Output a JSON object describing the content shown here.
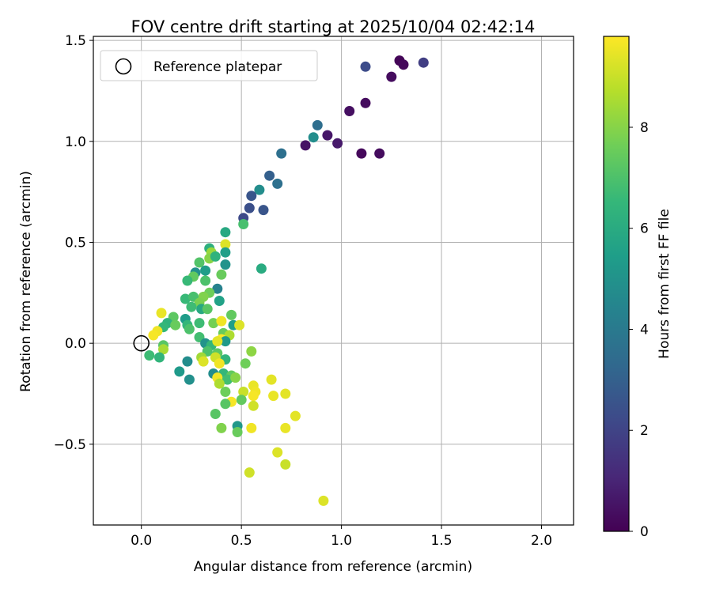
{
  "chart_data": {
    "type": "scatter",
    "title": "FOV centre drift starting at 2025/10/04 02:42:14",
    "xlabel": "Angular distance from reference (arcmin)",
    "ylabel": "Rotation from reference (arcmin)",
    "xlim": [
      -0.24,
      2.16
    ],
    "ylim": [
      -0.9,
      1.52
    ],
    "xticks": [
      0.0,
      0.5,
      1.0,
      1.5,
      2.0
    ],
    "xtick_labels": [
      "0.0",
      "0.5",
      "1.0",
      "1.5",
      "2.0"
    ],
    "yticks": [
      -0.5,
      0.0,
      0.5,
      1.0,
      1.5
    ],
    "ytick_labels": [
      "−0.5",
      "0.0",
      "0.5",
      "1.0",
      "1.5"
    ],
    "grid": true,
    "legend": {
      "label": "Reference platepar",
      "position": "top-left"
    },
    "reference_point": {
      "x": 0.0,
      "y": 0.0
    },
    "colorbar": {
      "label": "Hours from first FF file",
      "range": [
        0,
        9.8
      ],
      "ticks": [
        0,
        2,
        4,
        6,
        8
      ],
      "tick_labels": [
        "0",
        "2",
        "4",
        "6",
        "8"
      ],
      "colormap": "viridis",
      "colors": [
        "#440154",
        "#482878",
        "#3e4989",
        "#31688e",
        "#26828e",
        "#1f9e89",
        "#35b779",
        "#6ece58",
        "#b5de2b",
        "#fde725"
      ]
    },
    "series": [
      {
        "name": "FOV centre",
        "points": [
          {
            "x": 1.29,
            "y": 1.4,
            "h": 0.1
          },
          {
            "x": 1.31,
            "y": 1.38,
            "h": 0.2
          },
          {
            "x": 1.41,
            "y": 1.39,
            "h": 1.8
          },
          {
            "x": 1.12,
            "y": 1.37,
            "h": 2.3
          },
          {
            "x": 1.25,
            "y": 1.32,
            "h": 0.3
          },
          {
            "x": 1.12,
            "y": 1.19,
            "h": 0.3
          },
          {
            "x": 1.04,
            "y": 1.15,
            "h": 0.4
          },
          {
            "x": 0.88,
            "y": 1.08,
            "h": 3.5
          },
          {
            "x": 0.93,
            "y": 1.03,
            "h": 0.6
          },
          {
            "x": 0.86,
            "y": 1.02,
            "h": 4.8
          },
          {
            "x": 0.98,
            "y": 0.99,
            "h": 0.7
          },
          {
            "x": 0.82,
            "y": 0.98,
            "h": 0.5
          },
          {
            "x": 1.1,
            "y": 0.94,
            "h": 0.2
          },
          {
            "x": 1.19,
            "y": 0.94,
            "h": 0.3
          },
          {
            "x": 0.7,
            "y": 0.94,
            "h": 3.6
          },
          {
            "x": 0.64,
            "y": 0.83,
            "h": 3.0
          },
          {
            "x": 0.68,
            "y": 0.79,
            "h": 3.6
          },
          {
            "x": 0.59,
            "y": 0.76,
            "h": 4.8
          },
          {
            "x": 0.55,
            "y": 0.73,
            "h": 2.6
          },
          {
            "x": 0.54,
            "y": 0.67,
            "h": 2.4
          },
          {
            "x": 0.61,
            "y": 0.66,
            "h": 2.6
          },
          {
            "x": 0.51,
            "y": 0.62,
            "h": 2.2
          },
          {
            "x": 0.51,
            "y": 0.59,
            "h": 6.9
          },
          {
            "x": 0.42,
            "y": 0.55,
            "h": 5.9
          },
          {
            "x": 0.42,
            "y": 0.49,
            "h": 9.3
          },
          {
            "x": 0.34,
            "y": 0.47,
            "h": 6.2
          },
          {
            "x": 0.35,
            "y": 0.45,
            "h": 8.3
          },
          {
            "x": 0.42,
            "y": 0.45,
            "h": 5.5
          },
          {
            "x": 0.34,
            "y": 0.42,
            "h": 8.0
          },
          {
            "x": 0.37,
            "y": 0.43,
            "h": 6.3
          },
          {
            "x": 0.29,
            "y": 0.4,
            "h": 7.1
          },
          {
            "x": 0.42,
            "y": 0.39,
            "h": 5.0
          },
          {
            "x": 0.6,
            "y": 0.37,
            "h": 6.0
          },
          {
            "x": 0.27,
            "y": 0.35,
            "h": 4.9
          },
          {
            "x": 0.32,
            "y": 0.36,
            "h": 5.4
          },
          {
            "x": 0.4,
            "y": 0.34,
            "h": 7.5
          },
          {
            "x": 0.26,
            "y": 0.33,
            "h": 7.4
          },
          {
            "x": 0.23,
            "y": 0.31,
            "h": 6.6
          },
          {
            "x": 0.32,
            "y": 0.31,
            "h": 7.0
          },
          {
            "x": 0.38,
            "y": 0.27,
            "h": 4.3
          },
          {
            "x": 0.34,
            "y": 0.25,
            "h": 7.6
          },
          {
            "x": 0.31,
            "y": 0.23,
            "h": 7.9
          },
          {
            "x": 0.22,
            "y": 0.22,
            "h": 6.6
          },
          {
            "x": 0.26,
            "y": 0.23,
            "h": 6.9
          },
          {
            "x": 0.29,
            "y": 0.2,
            "h": 7.8
          },
          {
            "x": 0.39,
            "y": 0.21,
            "h": 5.6
          },
          {
            "x": 0.25,
            "y": 0.18,
            "h": 6.7
          },
          {
            "x": 0.3,
            "y": 0.17,
            "h": 5.9
          },
          {
            "x": 0.33,
            "y": 0.17,
            "h": 7.2
          },
          {
            "x": 0.45,
            "y": 0.14,
            "h": 7.4
          },
          {
            "x": 0.1,
            "y": 0.15,
            "h": 9.5
          },
          {
            "x": 0.16,
            "y": 0.13,
            "h": 7.3
          },
          {
            "x": 0.22,
            "y": 0.12,
            "h": 5.4
          },
          {
            "x": 0.23,
            "y": 0.09,
            "h": 6.5
          },
          {
            "x": 0.29,
            "y": 0.1,
            "h": 6.7
          },
          {
            "x": 0.36,
            "y": 0.1,
            "h": 7.7
          },
          {
            "x": 0.4,
            "y": 0.11,
            "h": 9.6
          },
          {
            "x": 0.46,
            "y": 0.09,
            "h": 5.5
          },
          {
            "x": 0.49,
            "y": 0.09,
            "h": 9.3
          },
          {
            "x": 0.13,
            "y": 0.1,
            "h": 6.3
          },
          {
            "x": 0.17,
            "y": 0.09,
            "h": 7.5
          },
          {
            "x": 0.24,
            "y": 0.07,
            "h": 7.0
          },
          {
            "x": 0.11,
            "y": 0.08,
            "h": 6.5
          },
          {
            "x": 0.08,
            "y": 0.06,
            "h": 9.6
          },
          {
            "x": 0.06,
            "y": 0.04,
            "h": 9.7
          },
          {
            "x": 0.41,
            "y": 0.05,
            "h": 7.5
          },
          {
            "x": 0.44,
            "y": 0.04,
            "h": 8.6
          },
          {
            "x": 0.29,
            "y": 0.03,
            "h": 6.8
          },
          {
            "x": 0.4,
            "y": 0.02,
            "h": 9.8
          },
          {
            "x": 0.32,
            "y": 0.0,
            "h": 5.0
          },
          {
            "x": 0.35,
            "y": -0.01,
            "h": 6.5
          },
          {
            "x": 0.42,
            "y": 0.01,
            "h": 5.3
          },
          {
            "x": 0.38,
            "y": 0.01,
            "h": 9.4
          },
          {
            "x": 0.11,
            "y": -0.01,
            "h": 7.2
          },
          {
            "x": 0.11,
            "y": -0.03,
            "h": 8.5
          },
          {
            "x": 0.33,
            "y": -0.04,
            "h": 7.0
          },
          {
            "x": 0.38,
            "y": -0.05,
            "h": 7.3
          },
          {
            "x": 0.04,
            "y": -0.06,
            "h": 6.7
          },
          {
            "x": 0.09,
            "y": -0.07,
            "h": 6.4
          },
          {
            "x": 0.55,
            "y": -0.04,
            "h": 8.1
          },
          {
            "x": 0.3,
            "y": -0.07,
            "h": 8.4
          },
          {
            "x": 0.37,
            "y": -0.07,
            "h": 9.1
          },
          {
            "x": 0.42,
            "y": -0.08,
            "h": 6.4
          },
          {
            "x": 0.23,
            "y": -0.09,
            "h": 4.8
          },
          {
            "x": 0.31,
            "y": -0.09,
            "h": 9.3
          },
          {
            "x": 0.39,
            "y": -0.1,
            "h": 9.6
          },
          {
            "x": 0.52,
            "y": -0.1,
            "h": 7.6
          },
          {
            "x": 0.19,
            "y": -0.14,
            "h": 5.3
          },
          {
            "x": 0.36,
            "y": -0.15,
            "h": 4.8
          },
          {
            "x": 0.41,
            "y": -0.15,
            "h": 6.5
          },
          {
            "x": 0.45,
            "y": -0.16,
            "h": 7.4
          },
          {
            "x": 0.38,
            "y": -0.17,
            "h": 9.6
          },
          {
            "x": 0.43,
            "y": -0.18,
            "h": 6.8
          },
          {
            "x": 0.24,
            "y": -0.18,
            "h": 4.9
          },
          {
            "x": 0.47,
            "y": -0.17,
            "h": 8.0
          },
          {
            "x": 0.65,
            "y": -0.18,
            "h": 9.4
          },
          {
            "x": 0.39,
            "y": -0.2,
            "h": 8.6
          },
          {
            "x": 0.56,
            "y": -0.21,
            "h": 9.5
          },
          {
            "x": 0.42,
            "y": -0.24,
            "h": 7.6
          },
          {
            "x": 0.51,
            "y": -0.24,
            "h": 9.0
          },
          {
            "x": 0.57,
            "y": -0.24,
            "h": 9.6
          },
          {
            "x": 0.56,
            "y": -0.26,
            "h": 9.7
          },
          {
            "x": 0.66,
            "y": -0.26,
            "h": 9.5
          },
          {
            "x": 0.72,
            "y": -0.25,
            "h": 9.4
          },
          {
            "x": 0.5,
            "y": -0.28,
            "h": 7.4
          },
          {
            "x": 0.45,
            "y": -0.29,
            "h": 9.7
          },
          {
            "x": 0.42,
            "y": -0.3,
            "h": 7.2
          },
          {
            "x": 0.56,
            "y": -0.31,
            "h": 9.1
          },
          {
            "x": 0.37,
            "y": -0.35,
            "h": 7.2
          },
          {
            "x": 0.77,
            "y": -0.36,
            "h": 9.4
          },
          {
            "x": 0.4,
            "y": -0.42,
            "h": 7.9
          },
          {
            "x": 0.48,
            "y": -0.41,
            "h": 5.2
          },
          {
            "x": 0.55,
            "y": -0.42,
            "h": 9.6
          },
          {
            "x": 0.72,
            "y": -0.42,
            "h": 9.5
          },
          {
            "x": 0.48,
            "y": -0.44,
            "h": 7.5
          },
          {
            "x": 0.68,
            "y": -0.54,
            "h": 9.3
          },
          {
            "x": 0.72,
            "y": -0.6,
            "h": 9.0
          },
          {
            "x": 0.54,
            "y": -0.64,
            "h": 9.1
          },
          {
            "x": 0.91,
            "y": -0.78,
            "h": 9.3
          }
        ]
      }
    ]
  }
}
